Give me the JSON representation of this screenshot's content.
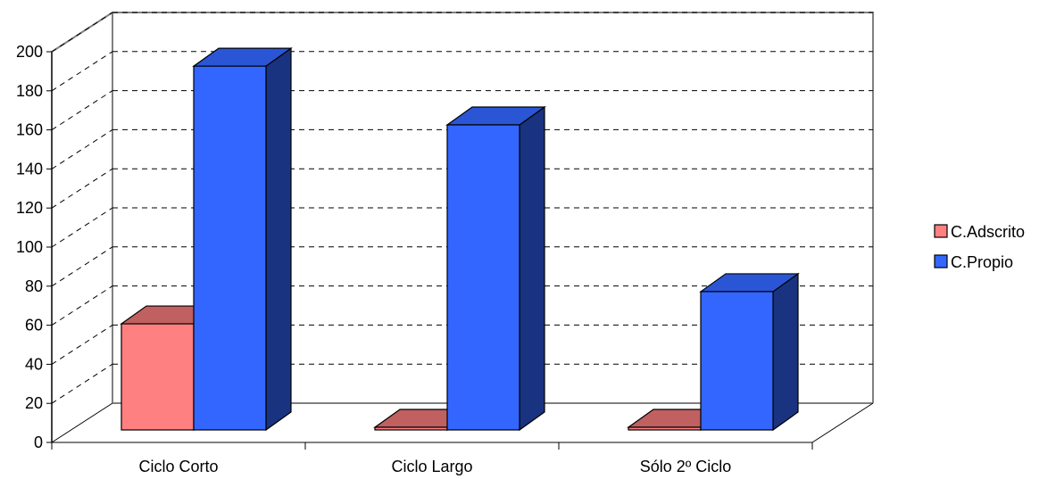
{
  "chart_data": {
    "type": "bar",
    "style": "3d-clustered-column",
    "categories": [
      "Ciclo Corto",
      "Ciclo Largo",
      "Sólo 2º Ciclo"
    ],
    "series": [
      {
        "name": "C.Adscrito",
        "values": [
          56,
          1,
          1
        ],
        "color": "#FF8080",
        "top_color": "#C06060",
        "side_color": "#B05050"
      },
      {
        "name": "C.Propio",
        "values": [
          192,
          161,
          73
        ],
        "color": "#3366FF",
        "top_color": "#2A56D6",
        "side_color": "#1A3380"
      }
    ],
    "y_ticks": [
      "0",
      "20",
      "40",
      "60",
      "80",
      "100",
      "120",
      "140",
      "160",
      "180",
      "200"
    ],
    "ylim": [
      0,
      200
    ],
    "grid": true,
    "legend_position": "right"
  }
}
